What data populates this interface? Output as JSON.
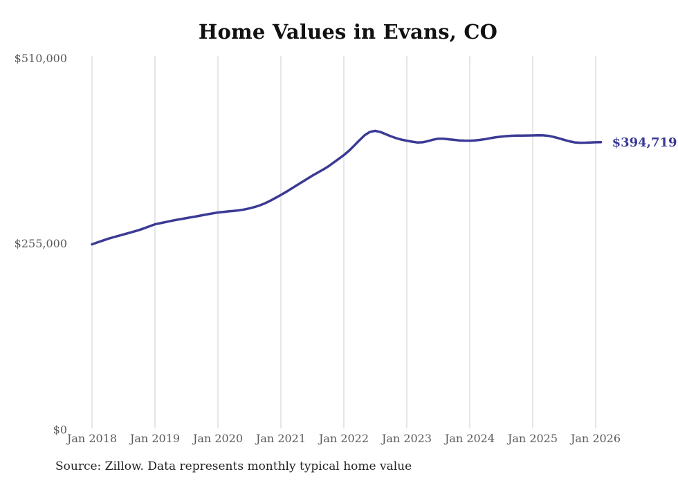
{
  "page": {
    "title": "Home Values in Evans, CO",
    "source_note": "Source: Zillow. Data represents monthly typical home value"
  },
  "chart_data": {
    "type": "line",
    "title": "Home Values in Evans, CO",
    "xlabel": "",
    "ylabel": "",
    "ylim": [
      0,
      510000
    ],
    "grid": "vertical-only",
    "legend": "none",
    "end_label": "$394,719",
    "line_color": "#3b3a95",
    "grid_color": "#cccccc",
    "axis_label_color": "#5a5a5a",
    "title_color": "#111111",
    "x_tick_labels": [
      "Jan 2018",
      "Jan 2019",
      "Jan 2020",
      "Jan 2021",
      "Jan 2022",
      "Jan 2023",
      "Jan 2024",
      "Jan 2025",
      "Jan 2026"
    ],
    "y_ticks": [
      {
        "label": "$0",
        "value": 0
      },
      {
        "label": "$255,000",
        "value": 255000
      },
      {
        "label": "$510,000",
        "value": 510000
      }
    ],
    "series": [
      {
        "name": "Typical home value",
        "x": [
          "2018-01",
          "2018-02",
          "2018-03",
          "2018-04",
          "2018-05",
          "2018-06",
          "2018-07",
          "2018-08",
          "2018-09",
          "2018-10",
          "2018-11",
          "2018-12",
          "2019-01",
          "2019-02",
          "2019-03",
          "2019-04",
          "2019-05",
          "2019-06",
          "2019-07",
          "2019-08",
          "2019-09",
          "2019-10",
          "2019-11",
          "2019-12",
          "2020-01",
          "2020-02",
          "2020-03",
          "2020-04",
          "2020-05",
          "2020-06",
          "2020-07",
          "2020-08",
          "2020-09",
          "2020-10",
          "2020-11",
          "2020-12",
          "2021-01",
          "2021-02",
          "2021-03",
          "2021-04",
          "2021-05",
          "2021-06",
          "2021-07",
          "2021-08",
          "2021-09",
          "2021-10",
          "2021-11",
          "2021-12",
          "2022-01",
          "2022-02",
          "2022-03",
          "2022-04",
          "2022-05",
          "2022-06",
          "2022-07",
          "2022-08",
          "2022-09",
          "2022-10",
          "2022-11",
          "2022-12",
          "2023-01",
          "2023-02",
          "2023-03",
          "2023-04",
          "2023-05",
          "2023-06",
          "2023-07",
          "2023-08",
          "2023-09",
          "2023-10",
          "2023-11",
          "2023-12",
          "2024-01",
          "2024-02",
          "2024-03",
          "2024-04",
          "2024-05",
          "2024-06",
          "2024-07",
          "2024-08",
          "2024-09",
          "2024-10",
          "2024-11",
          "2024-12",
          "2025-01",
          "2025-02",
          "2025-03",
          "2025-04",
          "2025-05",
          "2025-06",
          "2025-07",
          "2025-08",
          "2025-09",
          "2025-10",
          "2025-11",
          "2025-12",
          "2026-01",
          "2026-02"
        ],
        "values": [
          254000,
          256500,
          259000,
          261500,
          263600,
          265600,
          267600,
          269600,
          271600,
          273700,
          276200,
          278900,
          281500,
          283100,
          284600,
          286100,
          287500,
          288800,
          290100,
          291300,
          292600,
          294000,
          295300,
          296600,
          297800,
          298600,
          299300,
          300000,
          300800,
          301900,
          303400,
          305300,
          307700,
          310600,
          314100,
          318000,
          322000,
          326200,
          330600,
          335100,
          339600,
          344100,
          348500,
          352600,
          356700,
          361100,
          366200,
          371500,
          376800,
          383000,
          390100,
          397500,
          404400,
          408900,
          410200,
          408600,
          405600,
          402600,
          400100,
          398100,
          396700,
          395300,
          394200,
          394500,
          396000,
          398000,
          399400,
          399300,
          398600,
          397800,
          397100,
          396800,
          396700,
          397100,
          397800,
          398900,
          400200,
          401400,
          402300,
          403000,
          403400,
          403600,
          403700,
          403800,
          403900,
          404100,
          404000,
          403300,
          401800,
          399900,
          397800,
          395800,
          394300,
          393800,
          393900,
          394200,
          394500,
          394719
        ]
      }
    ],
    "latest_value": 394719,
    "source_note": "Source: Zillow. Data represents monthly typical home value"
  }
}
